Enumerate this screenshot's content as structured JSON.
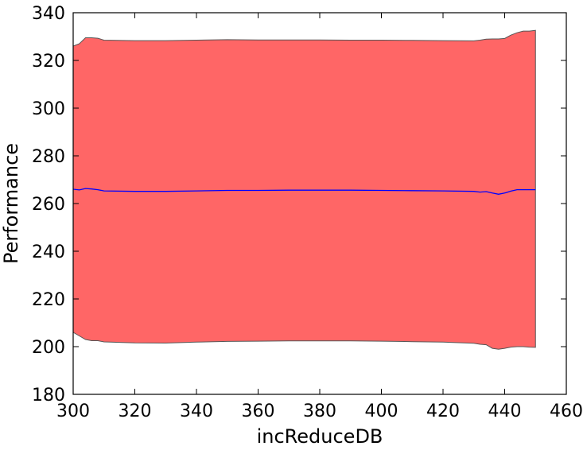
{
  "chart_data": {
    "type": "area",
    "xlabel": "incReduceDB",
    "ylabel": "Performance",
    "xlim": [
      300,
      460
    ],
    "ylim": [
      180,
      340
    ],
    "xticks": [
      300,
      320,
      340,
      360,
      380,
      400,
      420,
      440,
      460
    ],
    "yticks": [
      180,
      200,
      220,
      240,
      260,
      280,
      300,
      320,
      340
    ],
    "grid": false,
    "colors": {
      "band_fill": "#ff6666",
      "band_edge": "#555555",
      "mean_line": "#0000ff"
    },
    "x": [
      300,
      302,
      304,
      306,
      308,
      310,
      320,
      330,
      340,
      350,
      360,
      370,
      380,
      390,
      400,
      410,
      420,
      430,
      432,
      434,
      436,
      438,
      440,
      442,
      444,
      446,
      448,
      450
    ],
    "mean": [
      266.0,
      265.7,
      266.3,
      266.1,
      265.8,
      265.3,
      265.1,
      265.1,
      265.3,
      265.5,
      265.5,
      265.6,
      265.6,
      265.6,
      265.5,
      265.4,
      265.3,
      265.1,
      264.8,
      265.0,
      264.4,
      263.9,
      264.4,
      265.2,
      265.8,
      265.8,
      265.8,
      265.8
    ],
    "upper": [
      326.0,
      327.0,
      329.5,
      329.5,
      329.3,
      328.5,
      328.3,
      328.3,
      328.5,
      328.7,
      328.6,
      328.6,
      328.6,
      328.5,
      328.5,
      328.4,
      328.3,
      328.2,
      328.5,
      328.9,
      329.0,
      329.0,
      329.2,
      330.6,
      331.6,
      332.3,
      332.3,
      332.6
    ],
    "lower": [
      206.0,
      204.5,
      203.0,
      202.5,
      202.5,
      202.0,
      201.6,
      201.5,
      201.9,
      202.2,
      202.3,
      202.4,
      202.4,
      202.4,
      202.3,
      202.1,
      201.9,
      201.4,
      201.0,
      200.8,
      199.3,
      198.9,
      199.3,
      199.8,
      200.0,
      200.0,
      199.8,
      199.7
    ]
  }
}
